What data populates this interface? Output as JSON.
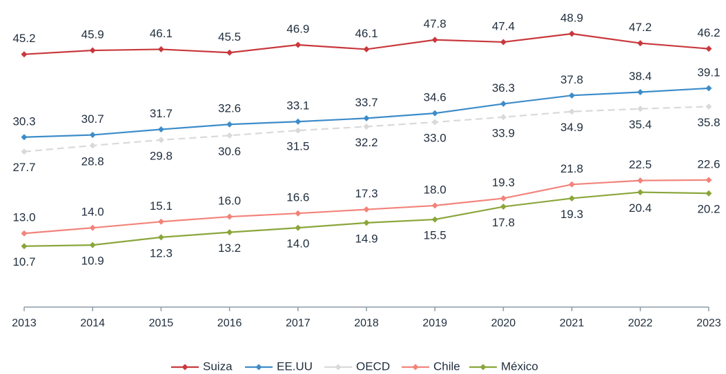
{
  "chart_data": {
    "type": "line",
    "categories": [
      "2013",
      "2014",
      "2015",
      "2016",
      "2017",
      "2018",
      "2019",
      "2020",
      "2021",
      "2022",
      "2023"
    ],
    "ylim": [
      0,
      50
    ],
    "series": [
      {
        "name": "Suiza",
        "color": "#c8383c",
        "values": [
          45.2,
          45.9,
          46.1,
          45.5,
          46.9,
          46.1,
          47.8,
          47.4,
          48.9,
          47.2,
          46.2
        ],
        "value_labels": [
          "45.2",
          "45.9",
          "46.1",
          "45.5",
          "46.9",
          "46.1",
          "47.8",
          "47.4",
          "48.9",
          "47.2",
          "46.2"
        ]
      },
      {
        "name": "EE.UU",
        "color": "#3d8cc9",
        "values": [
          30.3,
          30.7,
          31.7,
          32.6,
          33.1,
          33.7,
          34.6,
          36.3,
          37.8,
          38.4,
          39.1
        ],
        "value_labels": [
          "30.3",
          "30.7",
          "31.7",
          "32.6",
          "33.1",
          "33.7",
          "34.6",
          "36.3",
          "37.8",
          "38.4",
          "39.1"
        ]
      },
      {
        "name": "OECD",
        "color": "#d9d9d9",
        "values": [
          27.7,
          28.8,
          29.8,
          30.6,
          31.5,
          32.2,
          33.0,
          33.9,
          34.9,
          35.4,
          35.8
        ],
        "value_labels": [
          "27.7",
          "28.8",
          "29.8",
          "30.6",
          "31.5",
          "32.2",
          "33.0",
          "33.9",
          "34.9",
          "35.4",
          "35.8"
        ]
      },
      {
        "name": "Chile",
        "color": "#f2837a",
        "values": [
          13.0,
          14.0,
          15.1,
          16.0,
          16.6,
          17.3,
          18.0,
          19.3,
          21.8,
          22.5,
          22.6
        ],
        "value_labels": [
          "13.0",
          "14.0",
          "15.1",
          "16.0",
          "16.6",
          "17.3",
          "18.0",
          "19.3",
          "21.8",
          "22.5",
          "22.6"
        ]
      },
      {
        "name": "México",
        "color": "#8aa63a",
        "values": [
          10.7,
          10.9,
          12.3,
          13.2,
          14.0,
          14.9,
          15.5,
          17.8,
          19.3,
          20.4,
          20.2
        ],
        "value_labels": [
          "10.7",
          "10.9",
          "12.3",
          "13.2",
          "14.0",
          "14.9",
          "15.5",
          "17.8",
          "19.3",
          "20.4",
          "20.2"
        ]
      }
    ]
  }
}
